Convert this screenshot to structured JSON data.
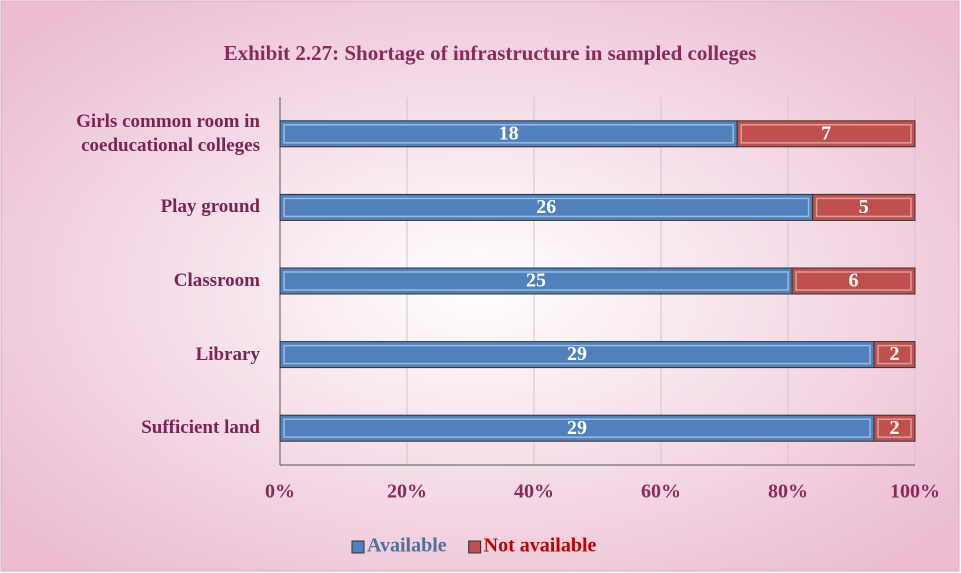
{
  "chart_data": {
    "type": "bar",
    "orientation": "horizontal",
    "stacking": "percent",
    "title": "Exhibit 2.27: Shortage of infrastructure in sampled colleges",
    "categories": [
      "Girls common room in coeducational colleges",
      "Play ground",
      "Classroom",
      "Library",
      "Sufficient land"
    ],
    "series": [
      {
        "name": "Available",
        "color": "#4f81bd",
        "values": [
          18,
          26,
          25,
          29,
          29
        ]
      },
      {
        "name": "Not available",
        "color": "#c0504d",
        "values": [
          7,
          5,
          6,
          2,
          2
        ]
      }
    ],
    "xlim": [
      0,
      100
    ],
    "xticks": [
      {
        "value": 0,
        "label": "0%"
      },
      {
        "value": 20,
        "label": "20%"
      },
      {
        "value": 40,
        "label": "40%"
      },
      {
        "value": 60,
        "label": "60%"
      },
      {
        "value": 80,
        "label": "80%"
      },
      {
        "value": 100,
        "label": "100%"
      }
    ],
    "grid": true,
    "legend": "bottom"
  }
}
